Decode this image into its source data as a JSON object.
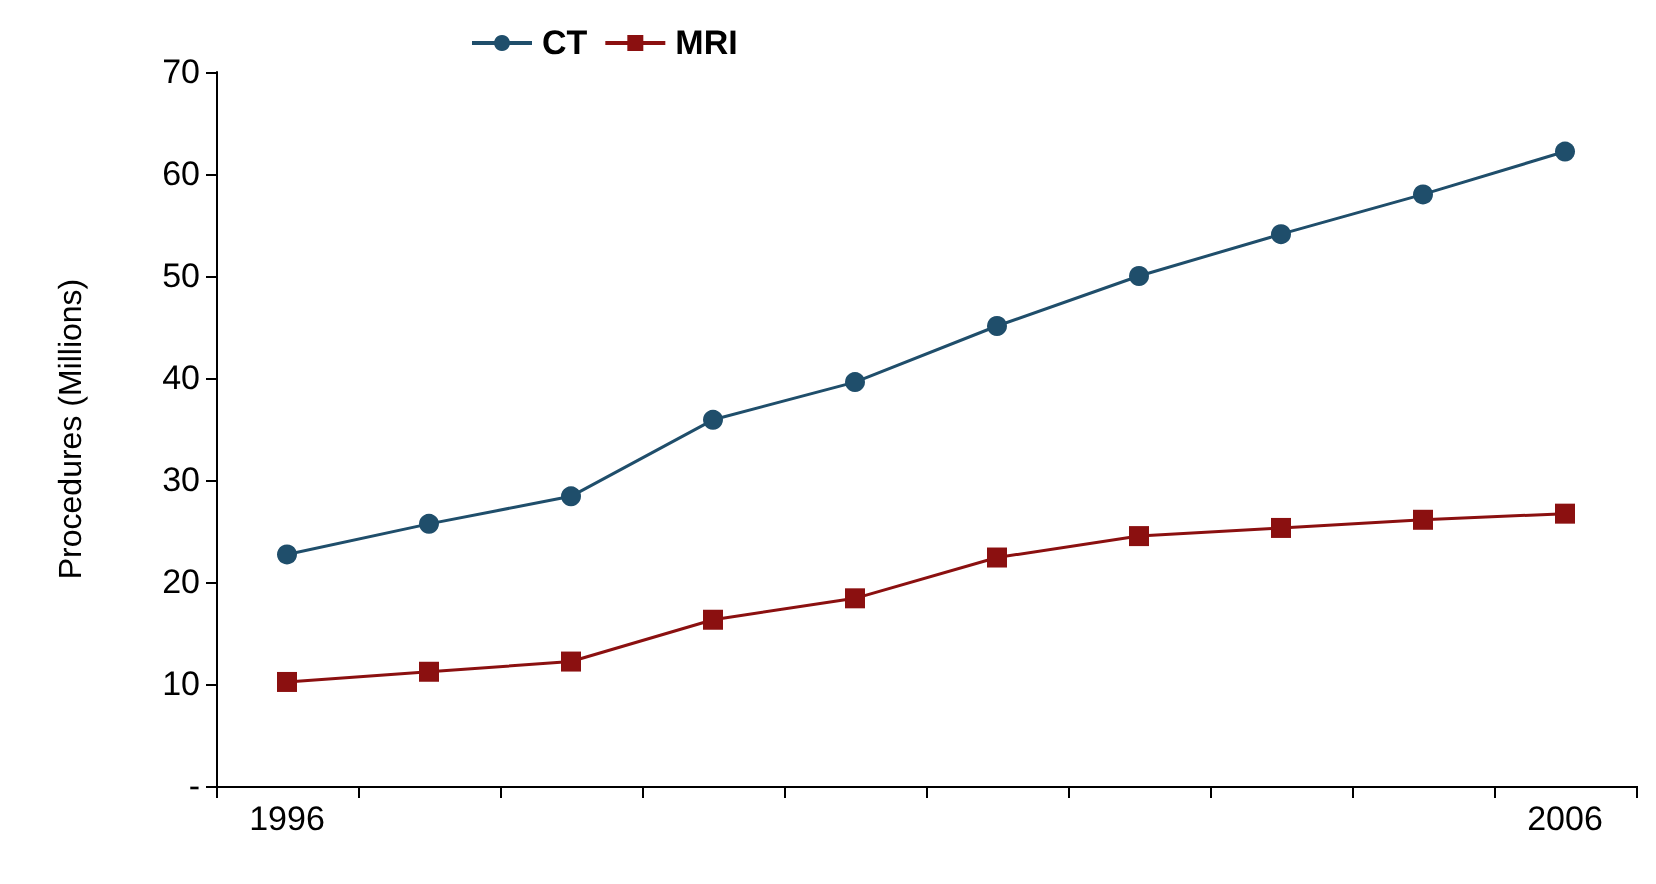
{
  "chart_data": {
    "type": "line",
    "ylabel": "Procedures (Millions)",
    "categories": [
      "1996",
      null,
      null,
      null,
      null,
      null,
      null,
      null,
      null,
      "2006"
    ],
    "series": [
      {
        "name": "CT",
        "color": "#1f4e6b",
        "marker": "circle",
        "values": [
          22.7,
          25.7,
          28.4,
          35.9,
          39.6,
          45.1,
          50,
          54.1,
          58,
          62.2
        ]
      },
      {
        "name": "MRI",
        "color": "#8b1010",
        "marker": "square",
        "values": [
          10.2,
          11.2,
          12.2,
          16.3,
          18.4,
          22.4,
          24.5,
          25.3,
          26.1,
          26.7
        ]
      }
    ],
    "ylim": [
      0,
      70
    ],
    "yticks": [
      {
        "value": 0,
        "label": "-"
      },
      10,
      20,
      30,
      40,
      50,
      60,
      70
    ],
    "grid": false,
    "legend": "top"
  }
}
